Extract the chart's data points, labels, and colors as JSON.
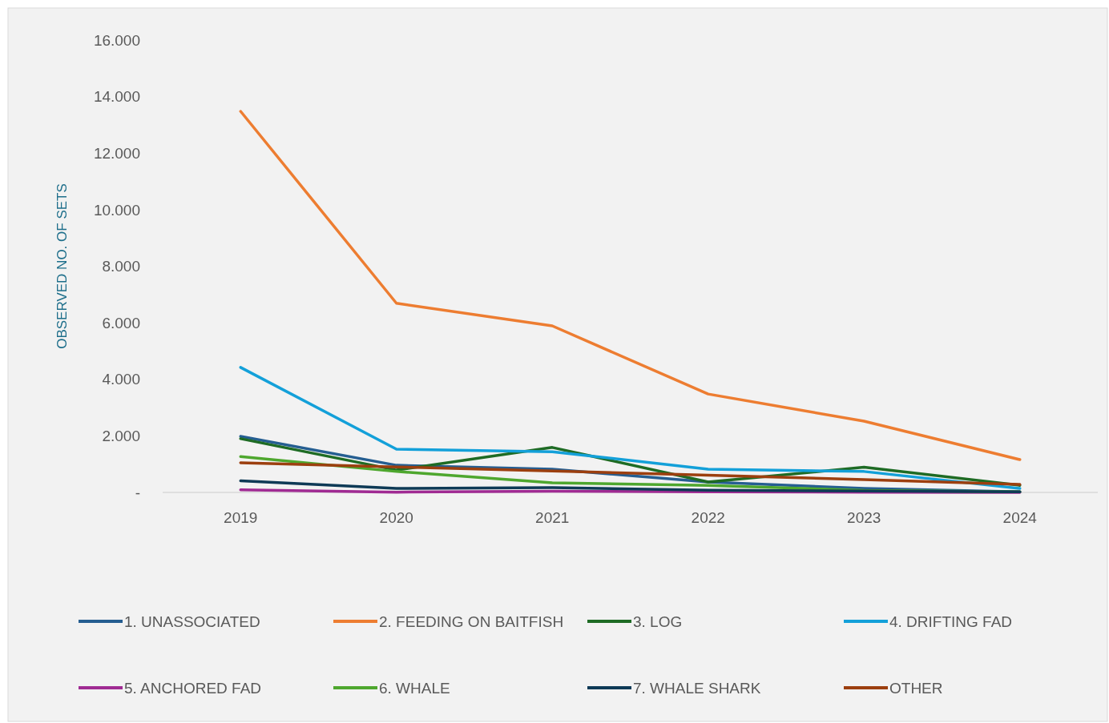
{
  "chart_data": {
    "type": "line",
    "ylabel": "OBSERVED NO. OF SETS",
    "categories": [
      "2019",
      "2020",
      "2021",
      "2022",
      "2023",
      "2024"
    ],
    "ylim": [
      0,
      16000
    ],
    "yticks": [
      {
        "value": 0,
        "label": "-"
      },
      {
        "value": 2000,
        "label": "2.000"
      },
      {
        "value": 4000,
        "label": "4.000"
      },
      {
        "value": 6000,
        "label": "6.000"
      },
      {
        "value": 8000,
        "label": "8.000"
      },
      {
        "value": 10000,
        "label": "10.000"
      },
      {
        "value": 12000,
        "label": "12.000"
      },
      {
        "value": 14000,
        "label": "14.000"
      },
      {
        "value": 16000,
        "label": "16.000"
      }
    ],
    "grid": false,
    "legend": "bottom",
    "marker": "none",
    "line_style": "solid",
    "series": [
      {
        "name": "1. UNASSOCIATED",
        "color": "#255e91",
        "values": [
          1980,
          960,
          820,
          370,
          140,
          20
        ]
      },
      {
        "name": "2. FEEDING ON BAITFISH",
        "color": "#ed7d31",
        "values": [
          13480,
          6690,
          5890,
          3480,
          2520,
          1160
        ]
      },
      {
        "name": "3. LOG",
        "color": "#1e6b24",
        "values": [
          1900,
          790,
          1590,
          370,
          890,
          250
        ]
      },
      {
        "name": "4. DRIFTING FAD",
        "color": "#13a0d9",
        "values": [
          4420,
          1530,
          1440,
          820,
          740,
          140
        ]
      },
      {
        "name": "5. ANCHORED FAD",
        "color": "#a02b93",
        "values": [
          90,
          10,
          40,
          20,
          10,
          0
        ]
      },
      {
        "name": "6. WHALE",
        "color": "#4ea72e",
        "values": [
          1270,
          740,
          340,
          250,
          70,
          20
        ]
      },
      {
        "name": "7. WHALE SHARK",
        "color": "#0e3a56",
        "values": [
          410,
          140,
          170,
          80,
          50,
          20
        ]
      },
      {
        "name": "OTHER",
        "color": "#9c3f0f",
        "values": [
          1050,
          900,
          760,
          610,
          450,
          280
        ]
      }
    ]
  }
}
